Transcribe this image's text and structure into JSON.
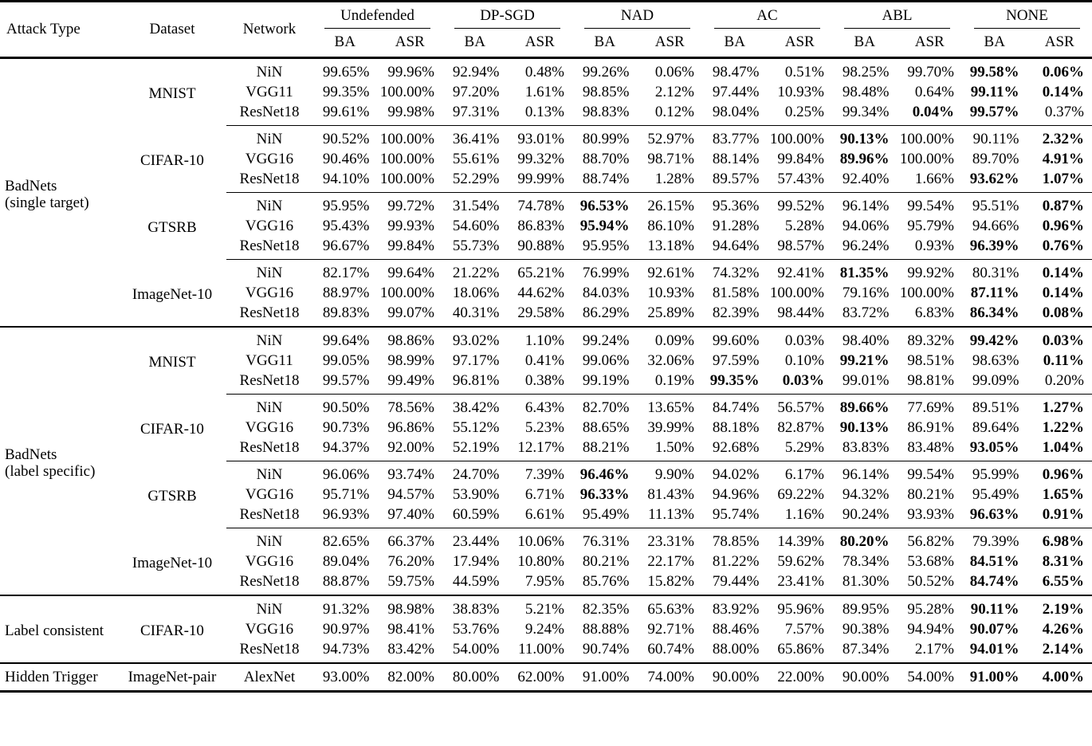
{
  "colors": {
    "text": "#000000",
    "background": "#ffffff",
    "rule": "#000000"
  },
  "header": {
    "fixed": [
      "Attack Type",
      "Dataset",
      "Network"
    ],
    "groups": [
      "Undefended",
      "DP-SGD",
      "NAD",
      "AC",
      "ABL",
      "NONE"
    ],
    "sub": [
      "BA",
      "ASR"
    ]
  },
  "blocks": [
    {
      "attack_type_lines": [
        "BadNets",
        "(single target)"
      ],
      "groups": [
        {
          "dataset": "MNIST",
          "rows": [
            {
              "network": "NiN",
              "values": [
                "99.65%",
                "99.96%",
                "92.94%",
                "0.48%",
                "99.26%",
                "0.06%",
                "98.47%",
                "0.51%",
                "98.25%",
                "99.70%",
                "99.58%",
                "0.06%"
              ],
              "bold": [
                10,
                11
              ]
            },
            {
              "network": "VGG11",
              "values": [
                "99.35%",
                "100.00%",
                "97.20%",
                "1.61%",
                "98.85%",
                "2.12%",
                "97.44%",
                "10.93%",
                "98.48%",
                "0.64%",
                "99.11%",
                "0.14%"
              ],
              "bold": [
                10,
                11
              ]
            },
            {
              "network": "ResNet18",
              "values": [
                "99.61%",
                "99.98%",
                "97.31%",
                "0.13%",
                "98.83%",
                "0.12%",
                "98.04%",
                "0.25%",
                "99.34%",
                "0.04%",
                "99.57%",
                "0.37%"
              ],
              "bold": [
                9,
                10
              ]
            }
          ]
        },
        {
          "dataset": "CIFAR-10",
          "rows": [
            {
              "network": "NiN",
              "values": [
                "90.52%",
                "100.00%",
                "36.41%",
                "93.01%",
                "80.99%",
                "52.97%",
                "83.77%",
                "100.00%",
                "90.13%",
                "100.00%",
                "90.11%",
                "2.32%"
              ],
              "bold": [
                8,
                11
              ]
            },
            {
              "network": "VGG16",
              "values": [
                "90.46%",
                "100.00%",
                "55.61%",
                "99.32%",
                "88.70%",
                "98.71%",
                "88.14%",
                "99.84%",
                "89.96%",
                "100.00%",
                "89.70%",
                "4.91%"
              ],
              "bold": [
                8,
                11
              ]
            },
            {
              "network": "ResNet18",
              "values": [
                "94.10%",
                "100.00%",
                "52.29%",
                "99.99%",
                "88.74%",
                "1.28%",
                "89.57%",
                "57.43%",
                "92.40%",
                "1.66%",
                "93.62%",
                "1.07%"
              ],
              "bold": [
                10,
                11
              ]
            }
          ]
        },
        {
          "dataset": "GTSRB",
          "rows": [
            {
              "network": "NiN",
              "values": [
                "95.95%",
                "99.72%",
                "31.54%",
                "74.78%",
                "96.53%",
                "26.15%",
                "95.36%",
                "99.52%",
                "96.14%",
                "99.54%",
                "95.51%",
                "0.87%"
              ],
              "bold": [
                4,
                11
              ]
            },
            {
              "network": "VGG16",
              "values": [
                "95.43%",
                "99.93%",
                "54.60%",
                "86.83%",
                "95.94%",
                "86.10%",
                "91.28%",
                "5.28%",
                "94.06%",
                "95.79%",
                "94.66%",
                "0.96%"
              ],
              "bold": [
                4,
                11
              ]
            },
            {
              "network": "ResNet18",
              "values": [
                "96.67%",
                "99.84%",
                "55.73%",
                "90.88%",
                "95.95%",
                "13.18%",
                "94.64%",
                "98.57%",
                "96.24%",
                "0.93%",
                "96.39%",
                "0.76%"
              ],
              "bold": [
                10,
                11
              ]
            }
          ]
        },
        {
          "dataset": "ImageNet-10",
          "rows": [
            {
              "network": "NiN",
              "values": [
                "82.17%",
                "99.64%",
                "21.22%",
                "65.21%",
                "76.99%",
                "92.61%",
                "74.32%",
                "92.41%",
                "81.35%",
                "99.92%",
                "80.31%",
                "0.14%"
              ],
              "bold": [
                8,
                11
              ]
            },
            {
              "network": "VGG16",
              "values": [
                "88.97%",
                "100.00%",
                "18.06%",
                "44.62%",
                "84.03%",
                "10.93%",
                "81.58%",
                "100.00%",
                "79.16%",
                "100.00%",
                "87.11%",
                "0.14%"
              ],
              "bold": [
                10,
                11
              ]
            },
            {
              "network": "ResNet18",
              "values": [
                "89.83%",
                "99.07%",
                "40.31%",
                "29.58%",
                "86.29%",
                "25.89%",
                "82.39%",
                "98.44%",
                "83.72%",
                "6.83%",
                "86.34%",
                "0.08%"
              ],
              "bold": [
                10,
                11
              ]
            }
          ]
        }
      ]
    },
    {
      "attack_type_lines": [
        "BadNets",
        "(label specific)"
      ],
      "groups": [
        {
          "dataset": "MNIST",
          "rows": [
            {
              "network": "NiN",
              "values": [
                "99.64%",
                "98.86%",
                "93.02%",
                "1.10%",
                "99.24%",
                "0.09%",
                "99.60%",
                "0.03%",
                "98.40%",
                "89.32%",
                "99.42%",
                "0.03%"
              ],
              "bold": [
                10,
                11
              ]
            },
            {
              "network": "VGG11",
              "values": [
                "99.05%",
                "98.99%",
                "97.17%",
                "0.41%",
                "99.06%",
                "32.06%",
                "97.59%",
                "0.10%",
                "99.21%",
                "98.51%",
                "98.63%",
                "0.11%"
              ],
              "bold": [
                8,
                11
              ]
            },
            {
              "network": "ResNet18",
              "values": [
                "99.57%",
                "99.49%",
                "96.81%",
                "0.38%",
                "99.19%",
                "0.19%",
                "99.35%",
                "0.03%",
                "99.01%",
                "98.81%",
                "99.09%",
                "0.20%"
              ],
              "bold": [
                6,
                7
              ]
            }
          ]
        },
        {
          "dataset": "CIFAR-10",
          "rows": [
            {
              "network": "NiN",
              "values": [
                "90.50%",
                "78.56%",
                "38.42%",
                "6.43%",
                "82.70%",
                "13.65%",
                "84.74%",
                "56.57%",
                "89.66%",
                "77.69%",
                "89.51%",
                "1.27%"
              ],
              "bold": [
                8,
                11
              ]
            },
            {
              "network": "VGG16",
              "values": [
                "90.73%",
                "96.86%",
                "55.12%",
                "5.23%",
                "88.65%",
                "39.99%",
                "88.18%",
                "82.87%",
                "90.13%",
                "86.91%",
                "89.64%",
                "1.22%"
              ],
              "bold": [
                8,
                11
              ]
            },
            {
              "network": "ResNet18",
              "values": [
                "94.37%",
                "92.00%",
                "52.19%",
                "12.17%",
                "88.21%",
                "1.50%",
                "92.68%",
                "5.29%",
                "83.83%",
                "83.48%",
                "93.05%",
                "1.04%"
              ],
              "bold": [
                10,
                11
              ]
            }
          ]
        },
        {
          "dataset": "GTSRB",
          "rows": [
            {
              "network": "NiN",
              "values": [
                "96.06%",
                "93.74%",
                "24.70%",
                "7.39%",
                "96.46%",
                "9.90%",
                "94.02%",
                "6.17%",
                "96.14%",
                "99.54%",
                "95.99%",
                "0.96%"
              ],
              "bold": [
                4,
                11
              ]
            },
            {
              "network": "VGG16",
              "values": [
                "95.71%",
                "94.57%",
                "53.90%",
                "6.71%",
                "96.33%",
                "81.43%",
                "94.96%",
                "69.22%",
                "94.32%",
                "80.21%",
                "95.49%",
                "1.65%"
              ],
              "bold": [
                4,
                11
              ]
            },
            {
              "network": "ResNet18",
              "values": [
                "96.93%",
                "97.40%",
                "60.59%",
                "6.61%",
                "95.49%",
                "11.13%",
                "95.74%",
                "1.16%",
                "90.24%",
                "93.93%",
                "96.63%",
                "0.91%"
              ],
              "bold": [
                10,
                11
              ]
            }
          ]
        },
        {
          "dataset": "ImageNet-10",
          "rows": [
            {
              "network": "NiN",
              "values": [
                "82.65%",
                "66.37%",
                "23.44%",
                "10.06%",
                "76.31%",
                "23.31%",
                "78.85%",
                "14.39%",
                "80.20%",
                "56.82%",
                "79.39%",
                "6.98%"
              ],
              "bold": [
                8,
                11
              ]
            },
            {
              "network": "VGG16",
              "values": [
                "89.04%",
                "76.20%",
                "17.94%",
                "10.80%",
                "80.21%",
                "22.17%",
                "81.22%",
                "59.62%",
                "78.34%",
                "53.68%",
                "84.51%",
                "8.31%"
              ],
              "bold": [
                10,
                11
              ]
            },
            {
              "network": "ResNet18",
              "values": [
                "88.87%",
                "59.75%",
                "44.59%",
                "7.95%",
                "85.76%",
                "15.82%",
                "79.44%",
                "23.41%",
                "81.30%",
                "50.52%",
                "84.74%",
                "6.55%"
              ],
              "bold": [
                10,
                11
              ]
            }
          ]
        }
      ]
    },
    {
      "attack_type_lines": [
        "Label consistent"
      ],
      "groups": [
        {
          "dataset": "CIFAR-10",
          "rows": [
            {
              "network": "NiN",
              "values": [
                "91.32%",
                "98.98%",
                "38.83%",
                "5.21%",
                "82.35%",
                "65.63%",
                "83.92%",
                "95.96%",
                "89.95%",
                "95.28%",
                "90.11%",
                "2.19%"
              ],
              "bold": [
                10,
                11
              ]
            },
            {
              "network": "VGG16",
              "values": [
                "90.97%",
                "98.41%",
                "53.76%",
                "9.24%",
                "88.88%",
                "92.71%",
                "88.46%",
                "7.57%",
                "90.38%",
                "94.94%",
                "90.07%",
                "4.26%"
              ],
              "bold": [
                10,
                11
              ]
            },
            {
              "network": "ResNet18",
              "values": [
                "94.73%",
                "83.42%",
                "54.00%",
                "11.00%",
                "90.74%",
                "60.74%",
                "88.00%",
                "65.86%",
                "87.34%",
                "2.17%",
                "94.01%",
                "2.14%"
              ],
              "bold": [
                10,
                11
              ]
            }
          ]
        }
      ]
    },
    {
      "attack_type_lines": [
        "Hidden Trigger"
      ],
      "groups": [
        {
          "dataset": "ImageNet-pair",
          "rows": [
            {
              "network": "AlexNet",
              "values": [
                "93.00%",
                "82.00%",
                "80.00%",
                "62.00%",
                "91.00%",
                "74.00%",
                "90.00%",
                "22.00%",
                "90.00%",
                "54.00%",
                "91.00%",
                "4.00%"
              ],
              "bold": [
                10,
                11
              ]
            }
          ]
        }
      ]
    }
  ]
}
